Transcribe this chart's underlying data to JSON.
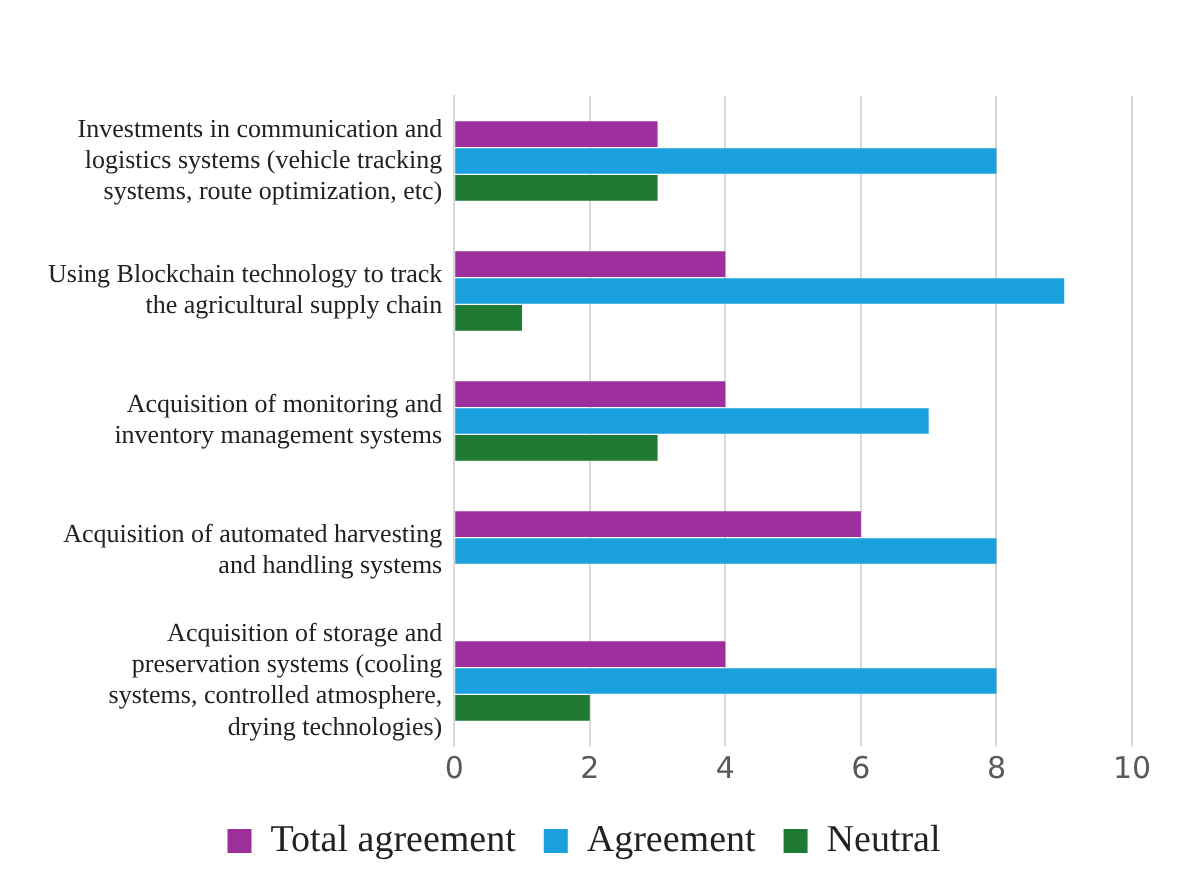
{
  "chart_data": {
    "type": "bar",
    "orientation": "horizontal",
    "categories": [
      "Investments in communication and logistics systems (vehicle tracking systems, route optimization, etc)",
      "Using Blockchain technology to track the agricultural supply chain",
      "Acquisition of monitoring and inventory management systems",
      "Acquisition of automated harvesting and handling systems",
      "Acquisition of storage and preservation systems (cooling systems, controlled atmosphere, drying technologies)"
    ],
    "series": [
      {
        "name": "Total agreement",
        "color": "#9c2f9c",
        "values": [
          3,
          4,
          4,
          6,
          4
        ]
      },
      {
        "name": "Agreement",
        "color": "#1aa0dc",
        "values": [
          8,
          9,
          7,
          8,
          8
        ]
      },
      {
        "name": "Neutral",
        "color": "#1e7a32",
        "values": [
          3,
          1,
          3,
          0,
          2
        ]
      }
    ],
    "xlim": [
      0,
      10
    ],
    "xticks": [
      0,
      2,
      4,
      6,
      8,
      10
    ],
    "grid": "x",
    "legend": "bottom"
  }
}
